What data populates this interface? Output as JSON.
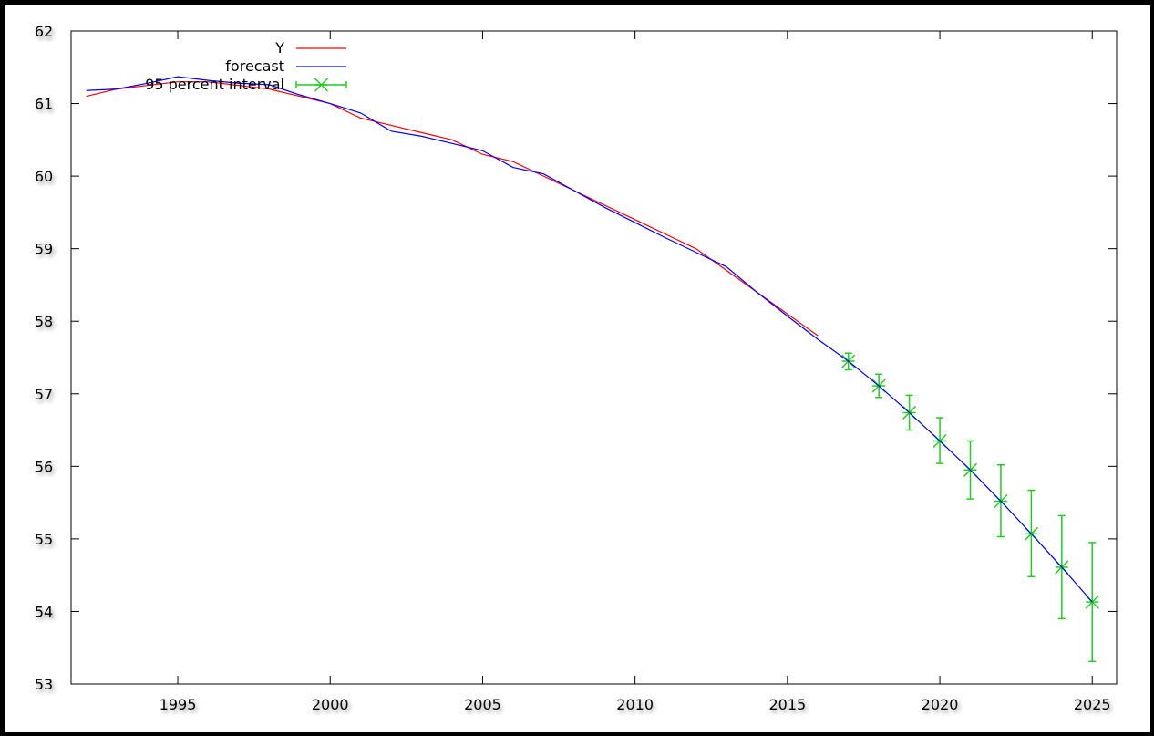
{
  "chart_data": {
    "type": "line",
    "title": "",
    "xlabel": "",
    "ylabel": "",
    "xlim": [
      1991.5,
      2025.8
    ],
    "ylim": [
      53,
      62
    ],
    "x_ticks": [
      "1995",
      "2000",
      "2005",
      "2010",
      "2015",
      "2020",
      "2025"
    ],
    "y_ticks": [
      "53",
      "54",
      "55",
      "56",
      "57",
      "58",
      "59",
      "60",
      "61",
      "62"
    ],
    "legend_position": "top-left",
    "grid": false,
    "series": [
      {
        "name": "Y",
        "color": "#ff0000",
        "style": "line",
        "x": [
          1992,
          1993,
          1994,
          1995,
          1996,
          1997,
          1998,
          1999,
          2000,
          2001,
          2002,
          2003,
          2004,
          2005,
          2006,
          2007,
          2008,
          2009,
          2010,
          2011,
          2012,
          2013,
          2014,
          2015,
          2016
        ],
        "y": [
          61.1,
          61.2,
          61.25,
          61.3,
          61.3,
          61.25,
          61.2,
          61.1,
          61.0,
          60.8,
          60.7,
          60.6,
          60.5,
          60.3,
          60.2,
          60.0,
          59.8,
          59.6,
          59.4,
          59.2,
          59.0,
          58.7,
          58.4,
          58.1,
          57.8
        ]
      },
      {
        "name": "forecast",
        "color": "#0000ff",
        "style": "line",
        "x": [
          1992,
          1993,
          1994,
          1995,
          1996,
          1997,
          1998,
          1999,
          2000,
          2001,
          2002,
          2003,
          2004,
          2005,
          2006,
          2007,
          2008,
          2009,
          2010,
          2011,
          2012,
          2013,
          2014,
          2015,
          2016,
          2017,
          2018,
          2019,
          2020,
          2021,
          2022,
          2023,
          2024,
          2025
        ],
        "y": [
          61.18,
          61.2,
          61.28,
          61.37,
          61.32,
          61.28,
          61.26,
          61.12,
          61.0,
          60.87,
          60.62,
          60.55,
          60.45,
          60.35,
          60.12,
          60.03,
          59.8,
          59.57,
          59.36,
          59.15,
          58.95,
          58.75,
          58.4,
          58.07,
          57.75,
          57.45,
          57.11,
          56.74,
          56.35,
          55.95,
          55.52,
          55.07,
          54.61,
          54.13
        ]
      },
      {
        "name": "95 percent interval",
        "color": "#22cc22",
        "style": "errorbar",
        "x": [
          2017,
          2018,
          2019,
          2020,
          2021,
          2022,
          2023,
          2024,
          2025
        ],
        "y": [
          57.45,
          57.11,
          56.74,
          56.35,
          55.95,
          55.52,
          55.07,
          54.61,
          54.13
        ],
        "low": [
          57.33,
          56.95,
          56.5,
          56.04,
          55.55,
          55.03,
          54.48,
          53.9,
          53.31
        ],
        "high": [
          57.56,
          57.27,
          56.98,
          56.67,
          56.35,
          56.02,
          55.67,
          55.32,
          54.95
        ]
      }
    ]
  }
}
